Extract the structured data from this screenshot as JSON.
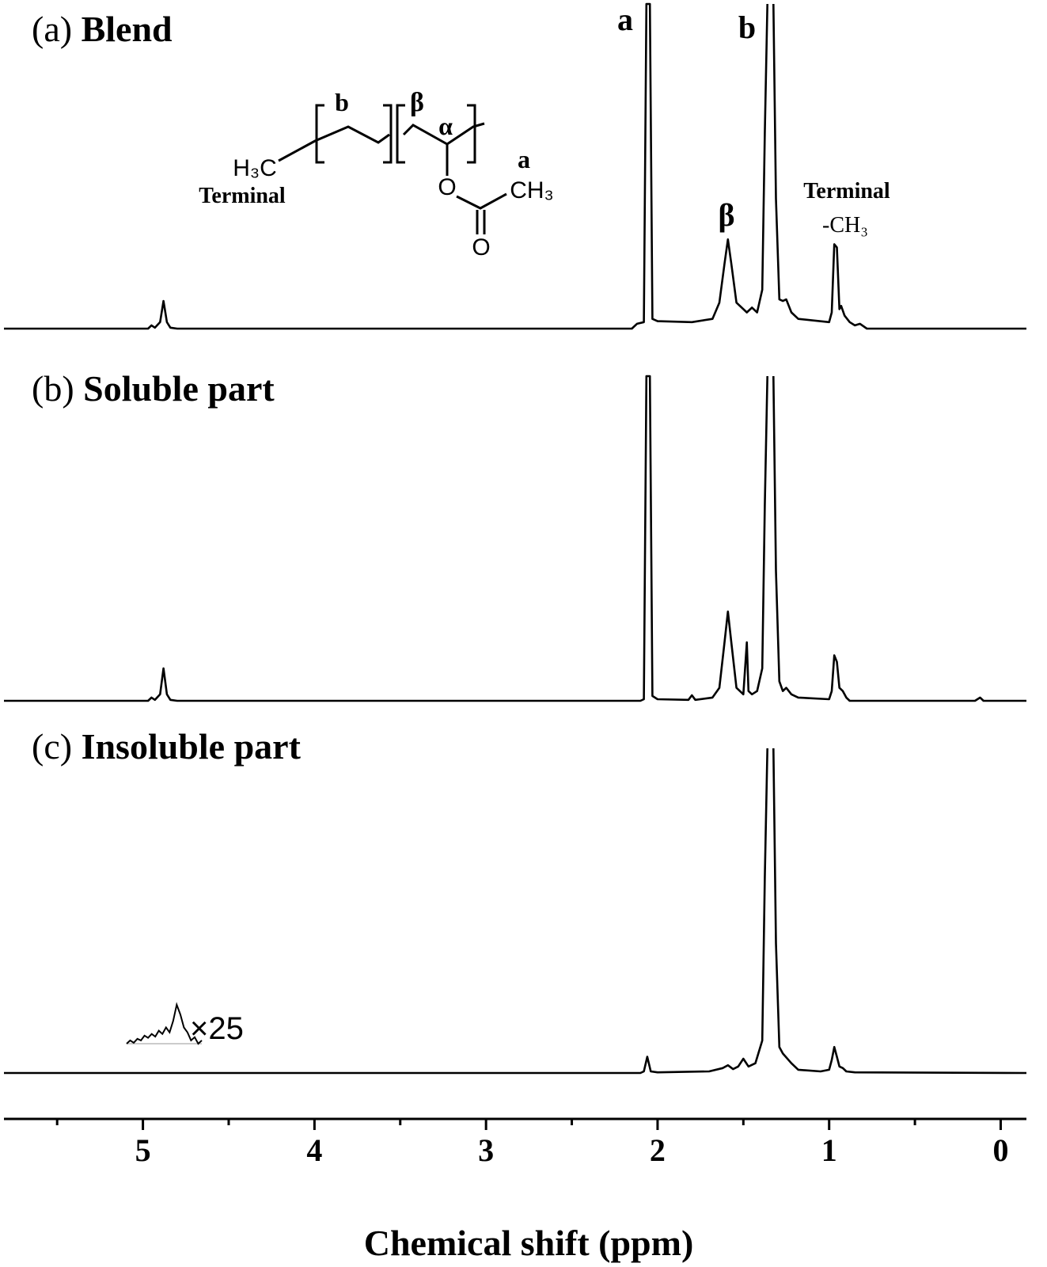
{
  "chart_data": {
    "type": "line",
    "xlabel": "Chemical shift (ppm)",
    "xlim": [
      5.81,
      -0.15
    ],
    "xticks": [
      5,
      4,
      3,
      2,
      1,
      0
    ],
    "xminorticks": [
      5.5,
      4.5,
      3.5,
      2.5,
      1.5,
      0.5
    ],
    "ylim": [
      0,
      100
    ],
    "color": "#000000",
    "series": [
      {
        "label": "(a)",
        "name": "Blend",
        "x": [
          5.81,
          4.97,
          4.95,
          4.93,
          4.9,
          4.88,
          4.86,
          4.84,
          4.8,
          2.15,
          2.12,
          2.08,
          2.065,
          2.045,
          2.03,
          2.0,
          1.8,
          1.68,
          1.64,
          1.61,
          1.59,
          1.57,
          1.54,
          1.48,
          1.45,
          1.42,
          1.39,
          1.375,
          1.36,
          1.34,
          1.325,
          1.31,
          1.29,
          1.27,
          1.25,
          1.22,
          1.18,
          1.0,
          0.985,
          0.97,
          0.955,
          0.94,
          0.93,
          0.91,
          0.88,
          0.85,
          0.82,
          0.78,
          -0.15
        ],
        "values": [
          0,
          0,
          1,
          0.3,
          2,
          8.5,
          2,
          0.3,
          0,
          0,
          1.5,
          2,
          100,
          100,
          3,
          2.3,
          2,
          3,
          8,
          20,
          27.5,
          20,
          8,
          5,
          6.5,
          5,
          12,
          60,
          100,
          null,
          100,
          40,
          9,
          8.5,
          9,
          5,
          3,
          2,
          5,
          26,
          25,
          6,
          7,
          4,
          2,
          1,
          1.5,
          0,
          0
        ]
      },
      {
        "label": "(b)",
        "name": "Soluble part",
        "x": [
          5.81,
          4.97,
          4.95,
          4.93,
          4.9,
          4.88,
          4.86,
          4.84,
          4.8,
          2.1,
          2.08,
          2.065,
          2.045,
          2.03,
          2.0,
          1.82,
          1.8,
          1.78,
          1.68,
          1.64,
          1.61,
          1.59,
          1.57,
          1.54,
          1.5,
          1.49,
          1.48,
          1.47,
          1.45,
          1.42,
          1.39,
          1.375,
          1.36,
          1.34,
          1.325,
          1.31,
          1.29,
          1.27,
          1.25,
          1.22,
          1.18,
          1.0,
          0.985,
          0.97,
          0.955,
          0.94,
          0.92,
          0.9,
          0.88,
          0.15,
          0.12,
          0.1,
          -0.15
        ],
        "values": [
          0,
          0,
          1,
          0.3,
          2,
          10,
          2,
          0.3,
          0,
          0,
          0.5,
          100,
          100,
          1.5,
          0.5,
          0.3,
          1.7,
          0.3,
          1,
          4,
          18,
          27.5,
          18,
          4,
          2,
          10,
          18,
          3,
          2,
          3,
          10,
          60,
          100,
          null,
          100,
          40,
          6,
          3,
          4,
          2,
          1,
          0.5,
          3,
          14,
          12,
          4,
          3,
          1,
          0,
          0,
          1,
          0,
          0
        ]
      },
      {
        "label": "(c)",
        "name": "Insoluble part",
        "x": [
          5.81,
          2.1,
          2.08,
          2.06,
          2.04,
          2.0,
          1.7,
          1.62,
          1.59,
          1.56,
          1.53,
          1.5,
          1.47,
          1.43,
          1.39,
          1.375,
          1.36,
          1.34,
          1.325,
          1.31,
          1.29,
          1.27,
          1.22,
          1.18,
          1.05,
          1.0,
          0.985,
          0.97,
          0.955,
          0.94,
          0.92,
          0.9,
          0.85,
          -0.15
        ],
        "values": [
          0,
          0,
          0.5,
          5,
          0.5,
          0.2,
          0.5,
          1.5,
          2.4,
          1.2,
          2,
          4.4,
          2,
          3,
          10,
          60,
          100,
          null,
          100,
          40,
          8,
          6,
          3,
          1,
          0.5,
          1,
          4,
          8,
          5,
          2,
          1.5,
          0.5,
          0.2,
          0
        ]
      }
    ],
    "inset": {
      "label": "×25",
      "x": [
        5.08,
        5.06,
        5.04,
        5.02,
        5.0,
        4.98,
        4.96,
        4.94,
        4.92,
        4.9,
        4.88,
        4.86,
        4.84,
        4.82,
        4.8,
        4.78,
        4.76,
        4.74,
        4.72,
        4.7,
        4.68,
        4.66
      ],
      "values": [
        0,
        1,
        0.3,
        1.5,
        1,
        2.5,
        1.8,
        3,
        2.2,
        4,
        3,
        5,
        3.5,
        7,
        12,
        9,
        5,
        3.5,
        1,
        2,
        0,
        1
      ]
    },
    "annotations": [
      "a",
      "b",
      "β",
      "Terminal",
      "-CH₃"
    ],
    "structure": [
      "H₃C",
      "Terminal",
      "b",
      "β",
      "α",
      "O",
      "O",
      "a",
      "CH₃"
    ]
  }
}
